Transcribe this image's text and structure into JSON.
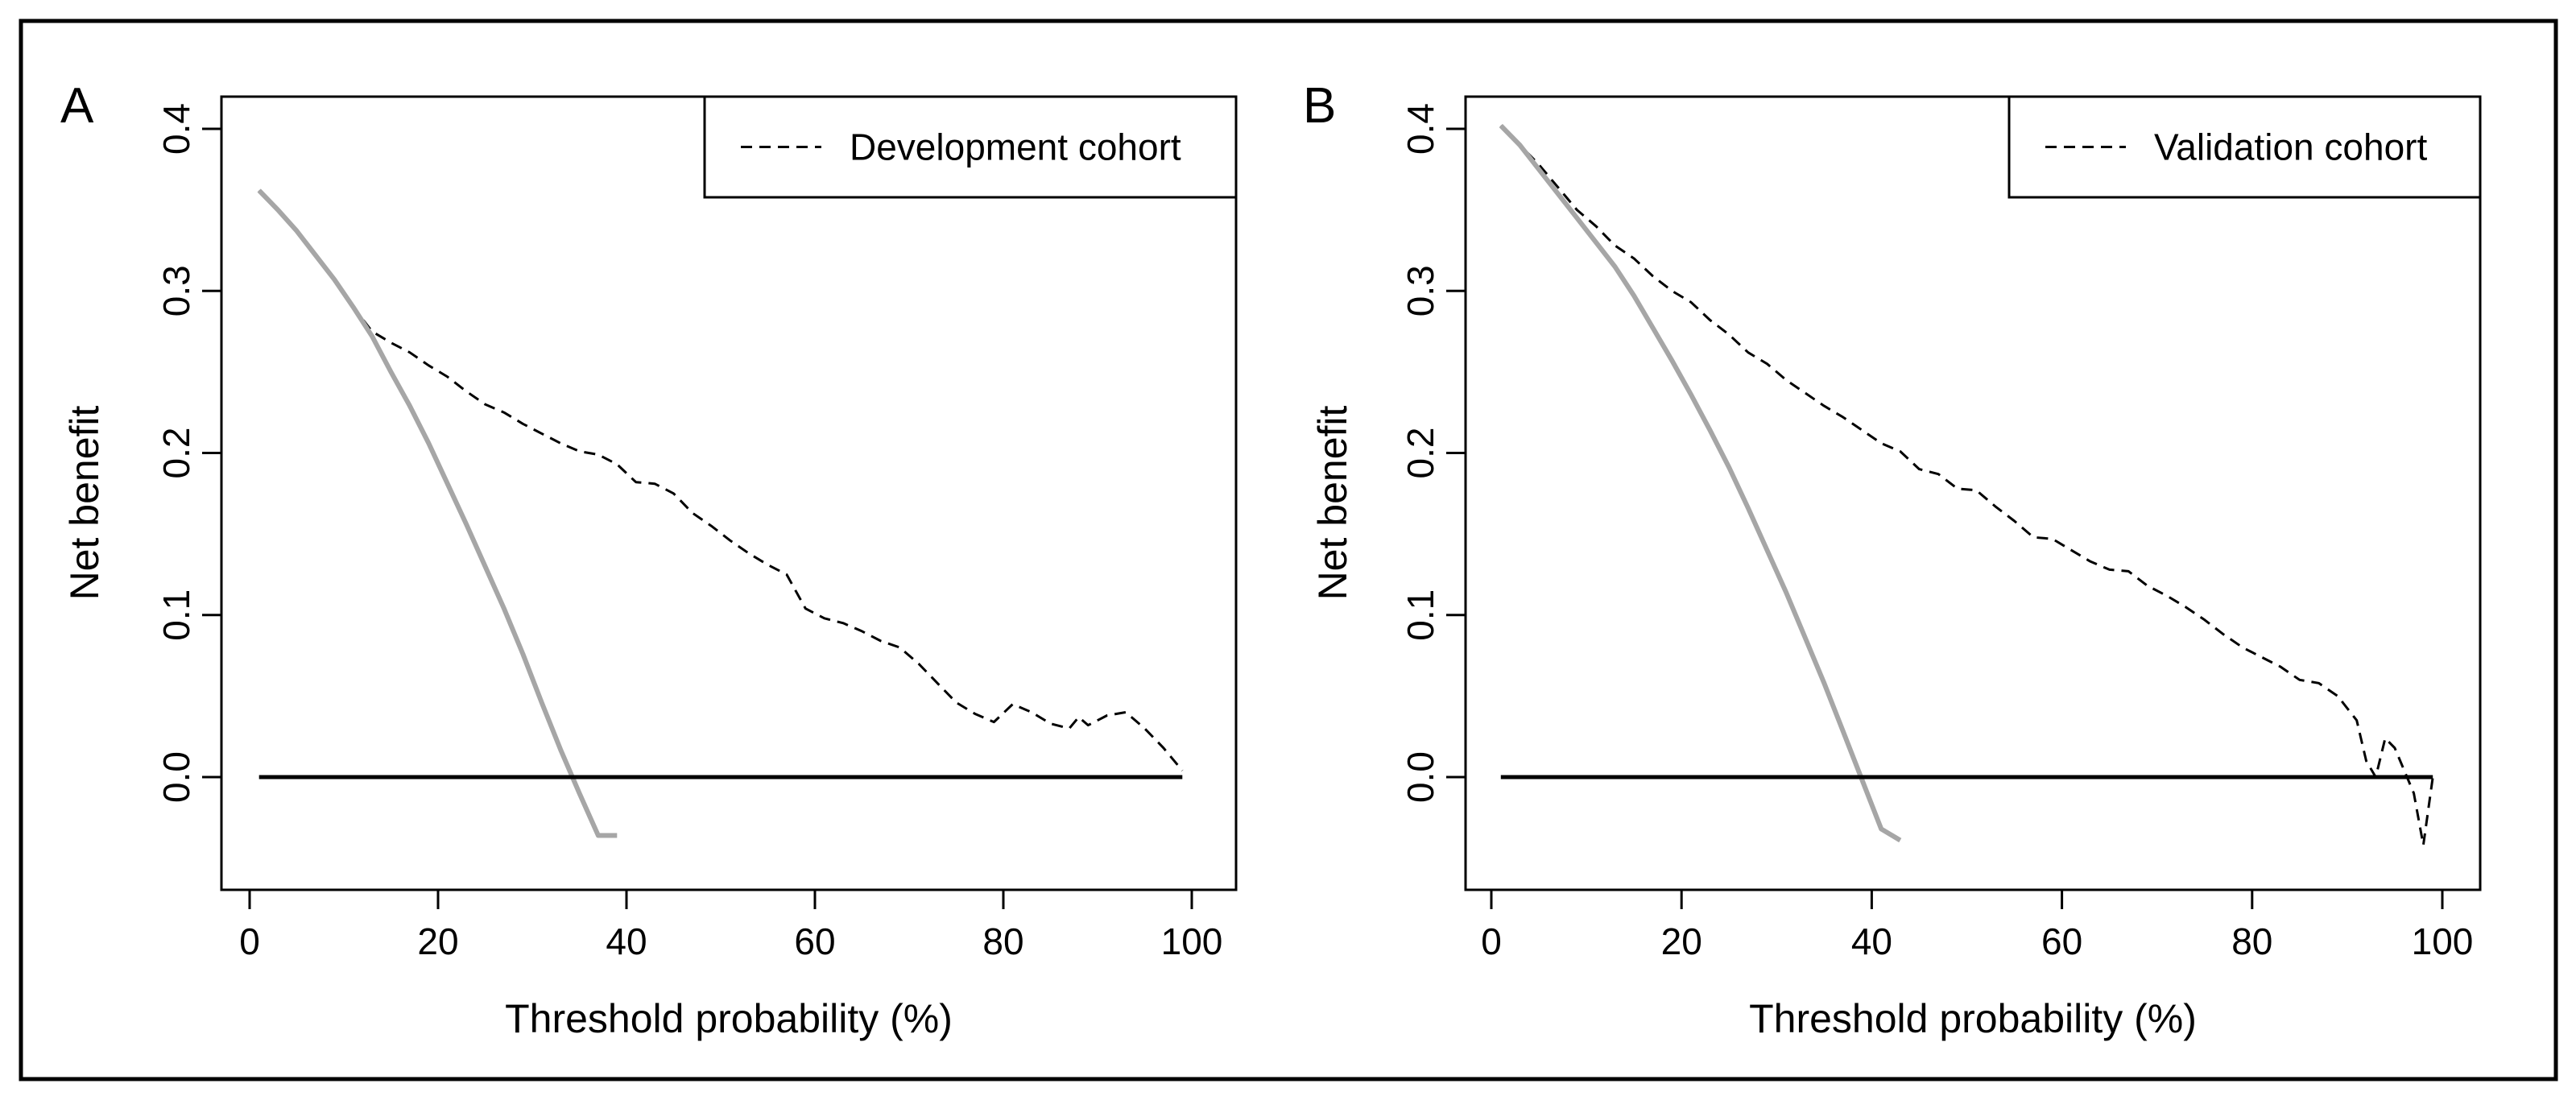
{
  "chart_data": [
    {
      "type": "line",
      "panel_label": "A",
      "title": "",
      "xlabel": "Threshold probability (%)",
      "ylabel": "Net benefit",
      "xlim": [
        0,
        100
      ],
      "ylim": [
        -0.04,
        0.4
      ],
      "xticks": [
        "0",
        "20",
        "40",
        "60",
        "80",
        "100"
      ],
      "yticks": [
        "0.0",
        "0.1",
        "0.2",
        "0.3",
        "0.4"
      ],
      "grid": false,
      "legend": {
        "position": "top-right",
        "entries": [
          "Development cohort"
        ]
      },
      "series": [
        {
          "name": "Development cohort",
          "style": "dashed",
          "color": "#000000",
          "x": [
            1,
            3,
            5,
            7,
            9,
            11,
            13,
            15,
            17,
            19,
            21,
            23,
            25,
            27,
            29,
            31,
            33,
            35,
            37,
            39,
            41,
            43,
            45,
            47,
            49,
            51,
            53,
            55,
            57,
            59,
            61,
            63,
            65,
            67,
            69,
            71,
            73,
            75,
            77,
            79,
            81,
            83,
            85,
            87,
            88,
            89,
            91,
            93,
            95,
            97,
            99
          ],
          "y": [
            0.362,
            0.35,
            0.337,
            0.322,
            0.307,
            0.29,
            0.275,
            0.268,
            0.262,
            0.254,
            0.247,
            0.238,
            0.23,
            0.225,
            0.218,
            0.212,
            0.206,
            0.201,
            0.199,
            0.193,
            0.182,
            0.181,
            0.175,
            0.163,
            0.155,
            0.146,
            0.138,
            0.131,
            0.125,
            0.104,
            0.098,
            0.095,
            0.09,
            0.084,
            0.08,
            0.07,
            0.058,
            0.046,
            0.039,
            0.034,
            0.045,
            0.04,
            0.033,
            0.03,
            0.037,
            0.032,
            0.038,
            0.04,
            0.03,
            0.018,
            0.004
          ]
        },
        {
          "name": "",
          "style": "solid",
          "color": "#a6a6a6",
          "x": [
            1,
            3,
            5,
            7,
            9,
            11,
            13,
            15,
            17,
            19,
            21,
            23,
            25,
            27,
            29,
            31,
            33,
            35,
            37,
            39
          ],
          "y": [
            0.362,
            0.35,
            0.337,
            0.322,
            0.307,
            0.29,
            0.272,
            0.25,
            0.229,
            0.206,
            0.181,
            0.156,
            0.13,
            0.104,
            0.076,
            0.046,
            0.017,
            -0.01,
            -0.036,
            -0.036
          ]
        },
        {
          "name": "",
          "style": "solid",
          "color": "#000000",
          "x": [
            1,
            99
          ],
          "y": [
            0,
            0
          ]
        }
      ]
    },
    {
      "type": "line",
      "panel_label": "B",
      "title": "",
      "xlabel": "Threshold probability (%)",
      "ylabel": "Net benefit",
      "xlim": [
        0,
        100
      ],
      "ylim": [
        -0.04,
        0.4
      ],
      "xticks": [
        "0",
        "20",
        "40",
        "60",
        "80",
        "100"
      ],
      "yticks": [
        "0.0",
        "0.1",
        "0.2",
        "0.3",
        "0.4"
      ],
      "grid": false,
      "legend": {
        "position": "top-right",
        "entries": [
          "Validation cohort"
        ]
      },
      "series": [
        {
          "name": "Validation cohort",
          "style": "dashed",
          "color": "#000000",
          "x": [
            1,
            3,
            5,
            7,
            9,
            11,
            13,
            15,
            17,
            19,
            21,
            23,
            25,
            27,
            29,
            31,
            33,
            35,
            37,
            39,
            41,
            43,
            45,
            47,
            49,
            51,
            53,
            55,
            57,
            59,
            61,
            63,
            65,
            67,
            69,
            71,
            73,
            75,
            77,
            79,
            81,
            83,
            85,
            87,
            89,
            91,
            92,
            93,
            94,
            95,
            96,
            97,
            98,
            99
          ],
          "y": [
            0.402,
            0.39,
            0.378,
            0.364,
            0.35,
            0.34,
            0.328,
            0.32,
            0.309,
            0.3,
            0.293,
            0.282,
            0.273,
            0.262,
            0.255,
            0.245,
            0.237,
            0.229,
            0.222,
            0.214,
            0.206,
            0.201,
            0.19,
            0.187,
            0.178,
            0.177,
            0.167,
            0.158,
            0.148,
            0.147,
            0.14,
            0.133,
            0.128,
            0.127,
            0.118,
            0.112,
            0.105,
            0.097,
            0.088,
            0.08,
            0.074,
            0.068,
            0.06,
            0.058,
            0.05,
            0.035,
            0.01,
            0.0,
            0.024,
            0.018,
            0.004,
            -0.01,
            -0.042,
            0.0
          ]
        },
        {
          "name": "",
          "style": "solid",
          "color": "#a6a6a6",
          "x": [
            1,
            3,
            5,
            7,
            9,
            11,
            13,
            15,
            17,
            19,
            21,
            23,
            25,
            27,
            29,
            31,
            33,
            35,
            37,
            39,
            41,
            43
          ],
          "y": [
            0.402,
            0.39,
            0.375,
            0.36,
            0.345,
            0.33,
            0.315,
            0.297,
            0.277,
            0.257,
            0.236,
            0.214,
            0.191,
            0.166,
            0.14,
            0.114,
            0.086,
            0.058,
            0.028,
            -0.002,
            -0.032,
            -0.039
          ]
        },
        {
          "name": "",
          "style": "solid",
          "color": "#000000",
          "x": [
            1,
            99
          ],
          "y": [
            0,
            0
          ]
        }
      ]
    }
  ]
}
